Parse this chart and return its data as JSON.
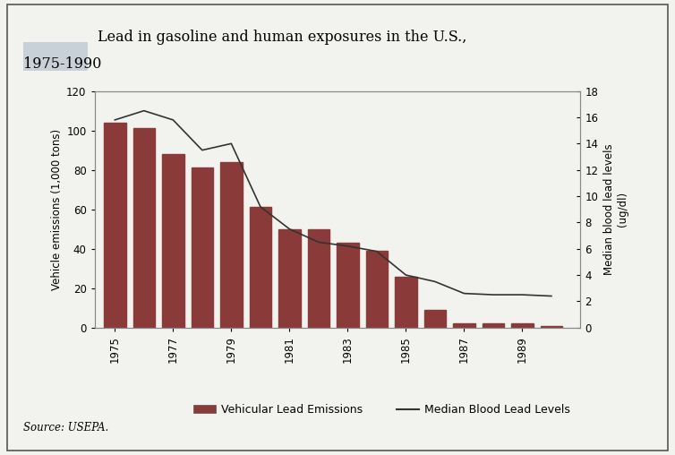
{
  "years": [
    1975,
    1976,
    1977,
    1978,
    1979,
    1980,
    1981,
    1982,
    1983,
    1984,
    1985,
    1986,
    1987,
    1988,
    1989,
    1990
  ],
  "emissions": [
    104,
    101,
    88,
    81,
    84,
    61,
    50,
    50,
    43,
    39,
    26,
    9,
    2,
    2,
    2,
    1
  ],
  "blood_lead_years": [
    1975,
    1976,
    1977,
    1978,
    1979,
    1980,
    1981,
    1982,
    1983,
    1984,
    1985,
    1986,
    1987,
    1988,
    1989,
    1990
  ],
  "blood_lead": [
    15.8,
    16.5,
    15.8,
    13.5,
    14.0,
    9.2,
    7.5,
    6.5,
    6.2,
    5.8,
    4.0,
    3.5,
    2.6,
    2.5,
    2.5,
    2.4
  ],
  "bar_color": "#8B3A3A",
  "line_color": "#333333",
  "background_color": "#f2f2ee",
  "title_line1": "Lead in gasoline and human exposures in the U.S.,",
  "title_line2": "1975-1990",
  "ylabel_left": "Vehicle emissions (1,000 tons)",
  "ylabel_right1": "Median blood lead levels",
  "ylabel_right2": "(ug/dl)",
  "ylim_left": [
    0,
    120
  ],
  "ylim_right": [
    0,
    18
  ],
  "yticks_left": [
    0,
    20,
    40,
    60,
    80,
    100,
    120
  ],
  "yticks_right": [
    0,
    2,
    4,
    6,
    8,
    10,
    12,
    14,
    16,
    18
  ],
  "xtick_labels": [
    "1975",
    "1977",
    "1979",
    "1981",
    "1983",
    "1985",
    "1987",
    "1989"
  ],
  "xtick_positions": [
    1975,
    1977,
    1979,
    1981,
    1983,
    1985,
    1987,
    1989
  ],
  "legend_bar_label": "Vehicular Lead Emissions",
  "legend_line_label": "Median Blood Lead Levels",
  "source_text": "Source: USEPA.",
  "title_fontsize": 11.5,
  "axis_fontsize": 8.5,
  "legend_fontsize": 9,
  "source_fontsize": 8.5,
  "swatch_color": "#c8d0d8"
}
